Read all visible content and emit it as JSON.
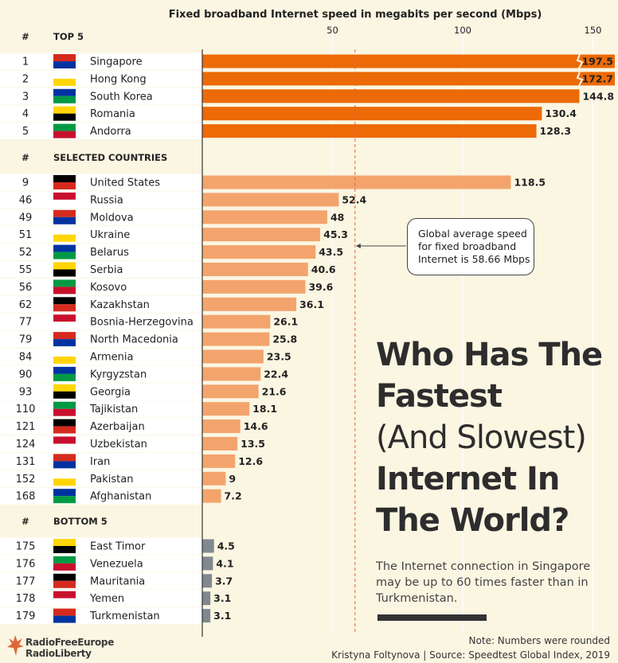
{
  "chart_title": "Fixed broadband Internet speed in megabits per second (Mbps)",
  "axis_ticks": [
    50,
    100,
    150
  ],
  "rank_header": "#",
  "average": {
    "value": 58.66,
    "label_lines": [
      "Global average speed",
      "for fixed broadband",
      "Internet is 58.66 Mbps"
    ]
  },
  "colors": {
    "top": "#ec6a07",
    "selected": "#f3a46d",
    "bottom": "#808890",
    "avg_line": "#e0663a",
    "stripe": "#ffffff"
  },
  "chart_data": {
    "type": "bar",
    "orientation": "horizontal",
    "xlim": [
      0,
      159
    ],
    "xlabel": "Fixed broadband Internet speed in megabits per second (Mbps)",
    "groups": [
      {
        "name": "TOP 5",
        "rows": [
          {
            "rank": "1",
            "country": "Singapore",
            "value": 197.5,
            "broken": true
          },
          {
            "rank": "2",
            "country": "Hong Kong",
            "value": 172.7,
            "broken": true
          },
          {
            "rank": "3",
            "country": "South Korea",
            "value": 144.8
          },
          {
            "rank": "4",
            "country": "Romania",
            "value": 130.4
          },
          {
            "rank": "5",
            "country": "Andorra",
            "value": 128.3
          }
        ]
      },
      {
        "name": "SELECTED COUNTRIES",
        "rows": [
          {
            "rank": "9",
            "country": "United States",
            "value": 118.5
          },
          {
            "rank": "46",
            "country": "Russia",
            "value": 52.4
          },
          {
            "rank": "49",
            "country": "Moldova",
            "value": 48
          },
          {
            "rank": "51",
            "country": "Ukraine",
            "value": 45.3
          },
          {
            "rank": "52",
            "country": "Belarus",
            "value": 43.5
          },
          {
            "rank": "55",
            "country": "Serbia",
            "value": 40.6
          },
          {
            "rank": "56",
            "country": "Kosovo",
            "value": 39.6
          },
          {
            "rank": "62",
            "country": "Kazakhstan",
            "value": 36.1
          },
          {
            "rank": "77",
            "country": "Bosnia-Herzegovina",
            "value": 26.1
          },
          {
            "rank": "79",
            "country": "North Macedonia",
            "value": 25.8
          },
          {
            "rank": "84",
            "country": "Armenia",
            "value": 23.5
          },
          {
            "rank": "90",
            "country": "Kyrgyzstan",
            "value": 22.4
          },
          {
            "rank": "93",
            "country": "Georgia",
            "value": 21.6
          },
          {
            "rank": "110",
            "country": "Tajikistan",
            "value": 18.1
          },
          {
            "rank": "121",
            "country": "Azerbaijan",
            "value": 14.6
          },
          {
            "rank": "124",
            "country": "Uzbekistan",
            "value": 13.5
          },
          {
            "rank": "131",
            "country": "Iran",
            "value": 12.6
          },
          {
            "rank": "152",
            "country": "Pakistan",
            "value": 9
          },
          {
            "rank": "168",
            "country": "Afghanistan",
            "value": 7.2
          }
        ]
      },
      {
        "name": "BOTTOM 5",
        "rows": [
          {
            "rank": "175",
            "country": "East Timor",
            "value": 4.5
          },
          {
            "rank": "176",
            "country": "Venezuela",
            "value": 4.1
          },
          {
            "rank": "177",
            "country": "Mauritania",
            "value": 3.7
          },
          {
            "rank": "178",
            "country": "Yemen",
            "value": 3.1
          },
          {
            "rank": "179",
            "country": "Turkmenistan",
            "value": 3.1
          }
        ]
      }
    ]
  },
  "headline": {
    "line1": "Who Has The",
    "line2": "Fastest",
    "line3": "(And Slowest)",
    "line4": "Internet In",
    "line5": "The World?"
  },
  "subtitle": "The Internet connection in Singapore may be up to 60 times faster than in Turkmenistan.",
  "footer": {
    "note": "Note: Numbers were rounded",
    "source": "Kristyna Foltynova | Source: Speedtest Global Index, 2019"
  },
  "logo": {
    "line1": "RadioFreeEurope",
    "line2": "RadioLiberty"
  }
}
